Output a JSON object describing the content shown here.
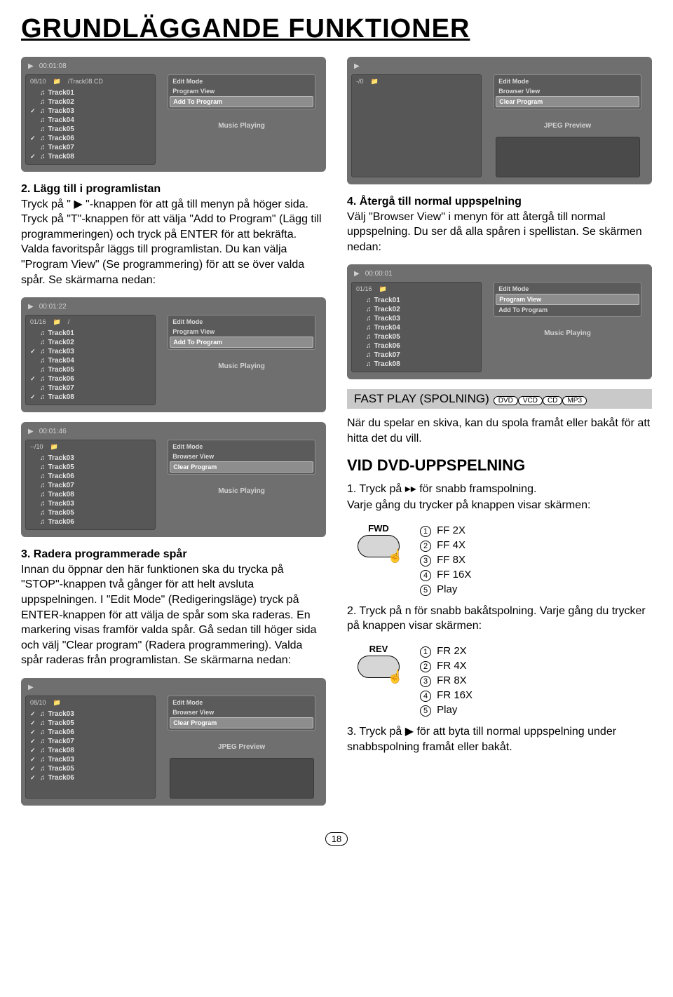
{
  "page_title": "GRUNDLÄGGANDE FUNKTIONER",
  "page_number": "18",
  "left": {
    "sec2_title": "2. Lägg till i programlistan",
    "sec2_body": "Tryck på \" ▶ \"-knappen för att gå till menyn på höger sida. Tryck på \"T\"-knappen för att välja \"Add to Program\" (Lägg till programmeringen) och tryck på ENTER för att bekräfta. Valda favoritspår läggs till programlistan. Du kan välja \"Program View\" (Se programmering) för att se över valda spår. Se skärmarna nedan:",
    "sec3_title": "3. Radera programmerade spår",
    "sec3_body": "Innan du öppnar den här funktionen ska du trycka på \"STOP\"-knappen två gånger för att helt avsluta uppspelningen. I \"Edit Mode\" (Redigeringsläge) tryck på ENTER-knappen för att välja de spår som ska raderas. En markering visas framför valda spår. Gå sedan till höger sida och välj \"Clear program\" (Radera programmering). Valda spår raderas från programlistan. Se skärmarna nedan:"
  },
  "right": {
    "sec4_title": "4. Återgå till normal uppspelning",
    "sec4_body": "Välj \"Browser View\" i menyn för att återgå till normal uppspelning. Du ser då alla spåren i spellistan. Se skärmen nedan:",
    "fast_title": "FAST PLAY (SPOLNING)",
    "fast_pills": [
      "DVD",
      "VCD",
      "CD",
      "MP3"
    ],
    "fast_body": "När du spelar en skiva, kan du spola framåt eller bakåt för att hitta det du vill.",
    "vid_title": "VID DVD-UPPSPELNING",
    "step1": "1. Tryck på ▸▸ för snabb framspolning.",
    "step1b": "Varje gång du trycker på knappen visar skärmen:",
    "fwd_label": "FWD",
    "fwd_list": [
      "FF  2X",
      "FF  4X",
      "FF  8X",
      "FF  16X",
      "Play"
    ],
    "step2": "2. Tryck på n för snabb bakåtspolning. Varje gång du trycker på knappen visar skärmen:",
    "rev_label": "REV",
    "rev_list": [
      "FR  2X",
      "FR  4X",
      "FR  8X",
      "FR  16X",
      "Play"
    ],
    "step3": "3. Tryck på  ▶  för att byta till normal uppspelning under snabbspolning framåt eller bakåt."
  },
  "shots": {
    "a": {
      "counter": "08/10",
      "time": "00:01:08",
      "path": "/Track08.CD",
      "tracks": [
        {
          "c": "",
          "n": "Track01"
        },
        {
          "c": "",
          "n": "Track02"
        },
        {
          "c": "✓",
          "n": "Track03"
        },
        {
          "c": "",
          "n": "Track04"
        },
        {
          "c": "",
          "n": "Track05"
        },
        {
          "c": "✓",
          "n": "Track06"
        },
        {
          "c": "",
          "n": "Track07"
        },
        {
          "c": "✓",
          "n": "Track08"
        }
      ],
      "menu": [
        "Edit Mode",
        "Program View",
        "Add To Program"
      ],
      "menu_hl": 2,
      "status": "Music Playing"
    },
    "b": {
      "counter": "01/16",
      "time": "00:01:22",
      "path": "/",
      "tracks": [
        {
          "c": "",
          "n": "Track01"
        },
        {
          "c": "",
          "n": "Track02"
        },
        {
          "c": "✓",
          "n": "Track03"
        },
        {
          "c": "",
          "n": "Track04"
        },
        {
          "c": "",
          "n": "Track05"
        },
        {
          "c": "✓",
          "n": "Track06"
        },
        {
          "c": "",
          "n": "Track07"
        },
        {
          "c": "✓",
          "n": "Track08"
        }
      ],
      "menu": [
        "Edit Mode",
        "Program View",
        "Add To Program"
      ],
      "menu_hl": 2,
      "status": "Music Playing"
    },
    "c": {
      "counter": "--/10",
      "time": "00:01:46",
      "path": "",
      "tracks": [
        {
          "c": "",
          "n": "Track03"
        },
        {
          "c": "",
          "n": "Track05"
        },
        {
          "c": "",
          "n": "Track06"
        },
        {
          "c": "",
          "n": "Track07"
        },
        {
          "c": "",
          "n": "Track08"
        },
        {
          "c": "",
          "n": "Track03"
        },
        {
          "c": "",
          "n": "Track05"
        },
        {
          "c": "",
          "n": "Track06"
        }
      ],
      "menu": [
        "Edit Mode",
        "Browser View",
        "Clear Program"
      ],
      "menu_hl": 2,
      "status": "Music Playing"
    },
    "d": {
      "counter": "08/10",
      "time": "",
      "path": "",
      "tracks": [
        {
          "c": "✓",
          "n": "Track03"
        },
        {
          "c": "✓",
          "n": "Track05"
        },
        {
          "c": "✓",
          "n": "Track06"
        },
        {
          "c": "✓",
          "n": "Track07"
        },
        {
          "c": "✓",
          "n": "Track08"
        },
        {
          "c": "✓",
          "n": "Track03"
        },
        {
          "c": "✓",
          "n": "Track05"
        },
        {
          "c": "✓",
          "n": "Track06"
        }
      ],
      "menu": [
        "Edit Mode",
        "Browser View",
        "Clear Program"
      ],
      "menu_hl": 2,
      "status": "JPEG Preview",
      "preview": true
    },
    "e": {
      "counter": "-/0",
      "time": "",
      "path": "",
      "tracks": [],
      "menu": [
        "Edit Mode",
        "Browser View",
        "Clear Program"
      ],
      "menu_hl": 2,
      "status": "JPEG Preview",
      "preview": true
    },
    "f": {
      "counter": "01/16",
      "time": "00:00:01",
      "path": "",
      "tracks": [
        {
          "c": "",
          "n": "Track01"
        },
        {
          "c": "",
          "n": "Track02"
        },
        {
          "c": "",
          "n": "Track03"
        },
        {
          "c": "",
          "n": "Track04"
        },
        {
          "c": "",
          "n": "Track05"
        },
        {
          "c": "",
          "n": "Track06"
        },
        {
          "c": "",
          "n": "Track07"
        },
        {
          "c": "",
          "n": "Track08"
        }
      ],
      "menu": [
        "Edit Mode",
        "Program View",
        "Add To Program"
      ],
      "menu_hl": 1,
      "status": "Music Playing"
    }
  }
}
